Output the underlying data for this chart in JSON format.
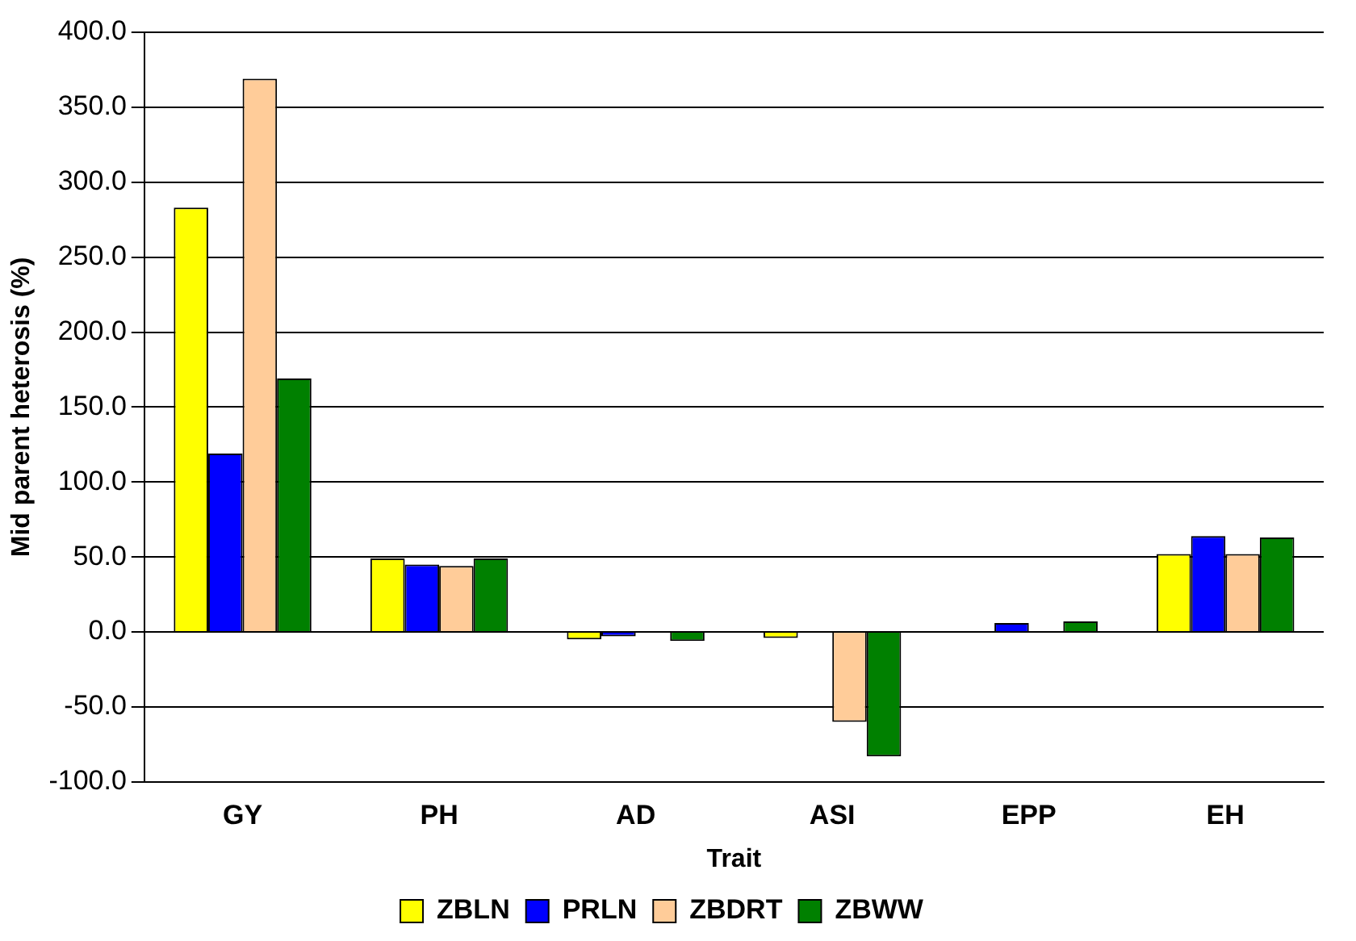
{
  "chart_data": {
    "type": "bar",
    "xlabel": "Trait",
    "ylabel": "Mid parent heterosis (%)",
    "categories": [
      "GY",
      "PH",
      "AD",
      "ASI",
      "EPP",
      "EH"
    ],
    "series": [
      {
        "name": "ZBLN",
        "color": "#ffff00",
        "values": [
          283,
          49,
          -5,
          -4,
          0,
          52
        ]
      },
      {
        "name": "PRLN",
        "color": "#0000ff",
        "values": [
          119,
          45,
          -3,
          0,
          6,
          64
        ]
      },
      {
        "name": "ZBDRT",
        "color": "#ffcc99",
        "values": [
          369,
          44,
          0,
          -60,
          0,
          52
        ]
      },
      {
        "name": "ZBWW",
        "color": "#008000",
        "values": [
          169,
          49,
          -6,
          -83,
          7,
          63
        ]
      }
    ],
    "ylim": [
      -100,
      400
    ],
    "yticks": [
      {
        "value": -100,
        "label": "-100.0"
      },
      {
        "value": -50,
        "label": "-50.0"
      },
      {
        "value": 0,
        "label": "0.0"
      },
      {
        "value": 50,
        "label": "50.0"
      },
      {
        "value": 100,
        "label": "100.0"
      },
      {
        "value": 150,
        "label": "150.0"
      },
      {
        "value": 200,
        "label": "200.0"
      },
      {
        "value": 250,
        "label": "250.0"
      },
      {
        "value": 300,
        "label": "300.0"
      },
      {
        "value": 350,
        "label": "350.0"
      },
      {
        "value": 400,
        "label": "400.0"
      }
    ],
    "grid": "y",
    "legend": "bottom"
  }
}
